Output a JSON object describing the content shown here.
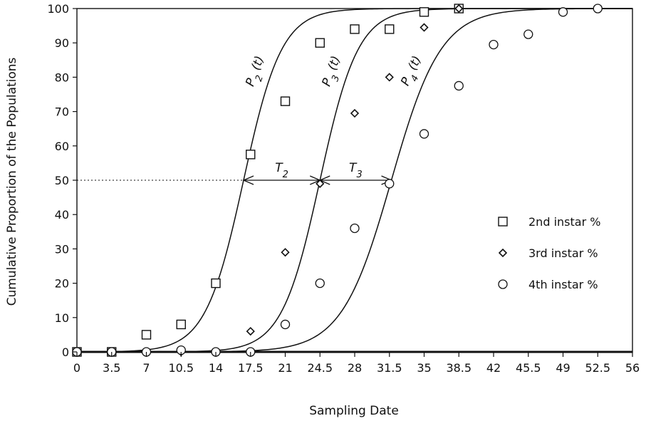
{
  "chart_data": {
    "type": "scatter",
    "xlabel": "Sampling Date",
    "ylabel": "Cumulative Proportion of the Populations",
    "xlim": [
      0,
      56
    ],
    "ylim": [
      0,
      100
    ],
    "x_ticks": [
      "0",
      "3.5",
      "7",
      "10.5",
      "14",
      "17.5",
      "21",
      "24.5",
      "28",
      "31.5",
      "35",
      "38.5",
      "42",
      "45.5",
      "49",
      "52.5",
      "56"
    ],
    "y_ticks": [
      "0",
      "10",
      "20",
      "30",
      "40",
      "50",
      "60",
      "70",
      "80",
      "90",
      "100"
    ],
    "grid": false,
    "legend_position": "right-middle",
    "series": [
      {
        "name": "2nd instar %",
        "marker": "square",
        "points": [
          [
            0,
            0
          ],
          [
            3.5,
            0
          ],
          [
            7,
            5
          ],
          [
            10.5,
            8
          ],
          [
            14,
            20
          ],
          [
            17.5,
            57.5
          ],
          [
            21,
            73
          ],
          [
            24.5,
            90
          ],
          [
            28,
            94
          ],
          [
            31.5,
            94
          ],
          [
            35,
            99
          ],
          [
            38.5,
            100
          ]
        ]
      },
      {
        "name": "3rd instar %",
        "marker": "diamond",
        "points": [
          [
            0,
            0
          ],
          [
            3.5,
            0
          ],
          [
            7,
            0
          ],
          [
            10.5,
            0
          ],
          [
            14,
            0
          ],
          [
            17.5,
            6
          ],
          [
            21,
            29
          ],
          [
            24.5,
            49
          ],
          [
            28,
            69.5
          ],
          [
            31.5,
            80
          ],
          [
            35,
            94.5
          ],
          [
            38.5,
            100
          ]
        ]
      },
      {
        "name": "4th instar %",
        "marker": "circle",
        "points": [
          [
            0,
            0
          ],
          [
            3.5,
            0
          ],
          [
            7,
            0
          ],
          [
            10.5,
            0.5
          ],
          [
            14,
            0
          ],
          [
            17.5,
            0
          ],
          [
            21,
            8
          ],
          [
            24.5,
            20
          ],
          [
            28,
            36
          ],
          [
            31.5,
            49
          ],
          [
            35,
            63.5
          ],
          [
            38.5,
            77.5
          ],
          [
            42,
            89.5
          ],
          [
            45.5,
            92.5
          ],
          [
            49,
            99
          ],
          [
            52.5,
            100
          ]
        ]
      }
    ],
    "curves": [
      {
        "label_main": "P",
        "label_sub": "2",
        "label_tail": " (t)",
        "midpoint": 16.8,
        "slope": 0.52
      },
      {
        "label_main": "P",
        "label_sub": "3",
        "label_tail": " (t)",
        "midpoint": 24.5,
        "slope": 0.52
      },
      {
        "label_main": "P",
        "label_sub": "4",
        "label_tail": " (t)",
        "midpoint": 31.7,
        "slope": 0.4
      }
    ],
    "annotations": [
      {
        "label_main": "T",
        "label_sub": "2",
        "from": 16.8,
        "to": 24.5,
        "y": 50
      },
      {
        "label_main": "T",
        "label_sub": "3",
        "from": 24.5,
        "to": 31.7,
        "y": 50
      }
    ],
    "reference_line": {
      "y": 50,
      "x_from": 0,
      "x_to": 16.8,
      "style": "dotted"
    }
  }
}
